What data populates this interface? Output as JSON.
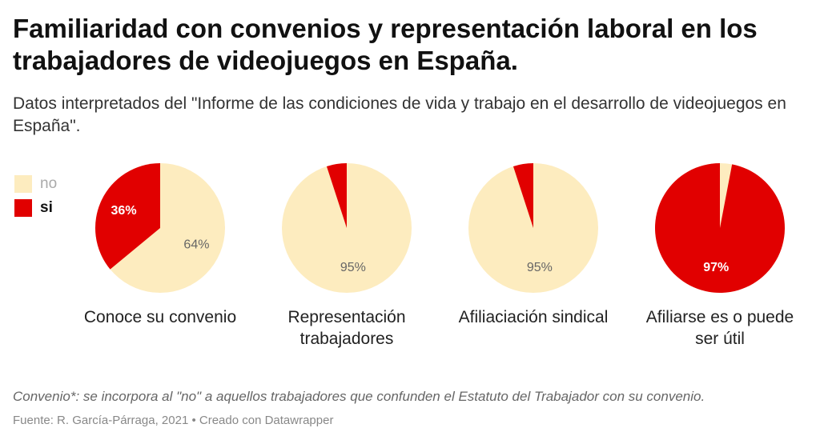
{
  "title": "Familiaridad con convenios y representación laboral en los trabajadores de videojuegos en España.",
  "subtitle": "Datos interpretados del \"Informe de las condiciones de vida y trabajo en el desarrollo de videojuegos en España\".",
  "legend": [
    {
      "label": "no",
      "color": "#fdecbf"
    },
    {
      "label": "si",
      "color": "#e10000"
    }
  ],
  "chart_data": {
    "type": "pie",
    "series_labels": [
      "no",
      "si"
    ],
    "colors": {
      "no": "#fdecbf",
      "si": "#e10000"
    },
    "pies": [
      {
        "label": "Conoce su convenio",
        "no": 64,
        "si": 36,
        "no_label": "64%",
        "si_label": "36%",
        "shown": "both"
      },
      {
        "label": "Representación trabajadores",
        "no": 95,
        "si": 5,
        "no_label": "95%",
        "si_label": "",
        "shown": "no"
      },
      {
        "label": "Afiliaciación sindical",
        "no": 95,
        "si": 5,
        "no_label": "95%",
        "si_label": "",
        "shown": "no"
      },
      {
        "label": "Afiliarse es o puede ser útil",
        "no": 3,
        "si": 97,
        "no_label": "",
        "si_label": "97%",
        "shown": "si"
      }
    ]
  },
  "note": "Convenio*: se incorpora al \"no\" a aquellos trabajadores que confunden el Estatuto del Trabajador con su convenio.",
  "source": "Fuente: R. García-Párraga, 2021 • Creado con Datawrapper"
}
